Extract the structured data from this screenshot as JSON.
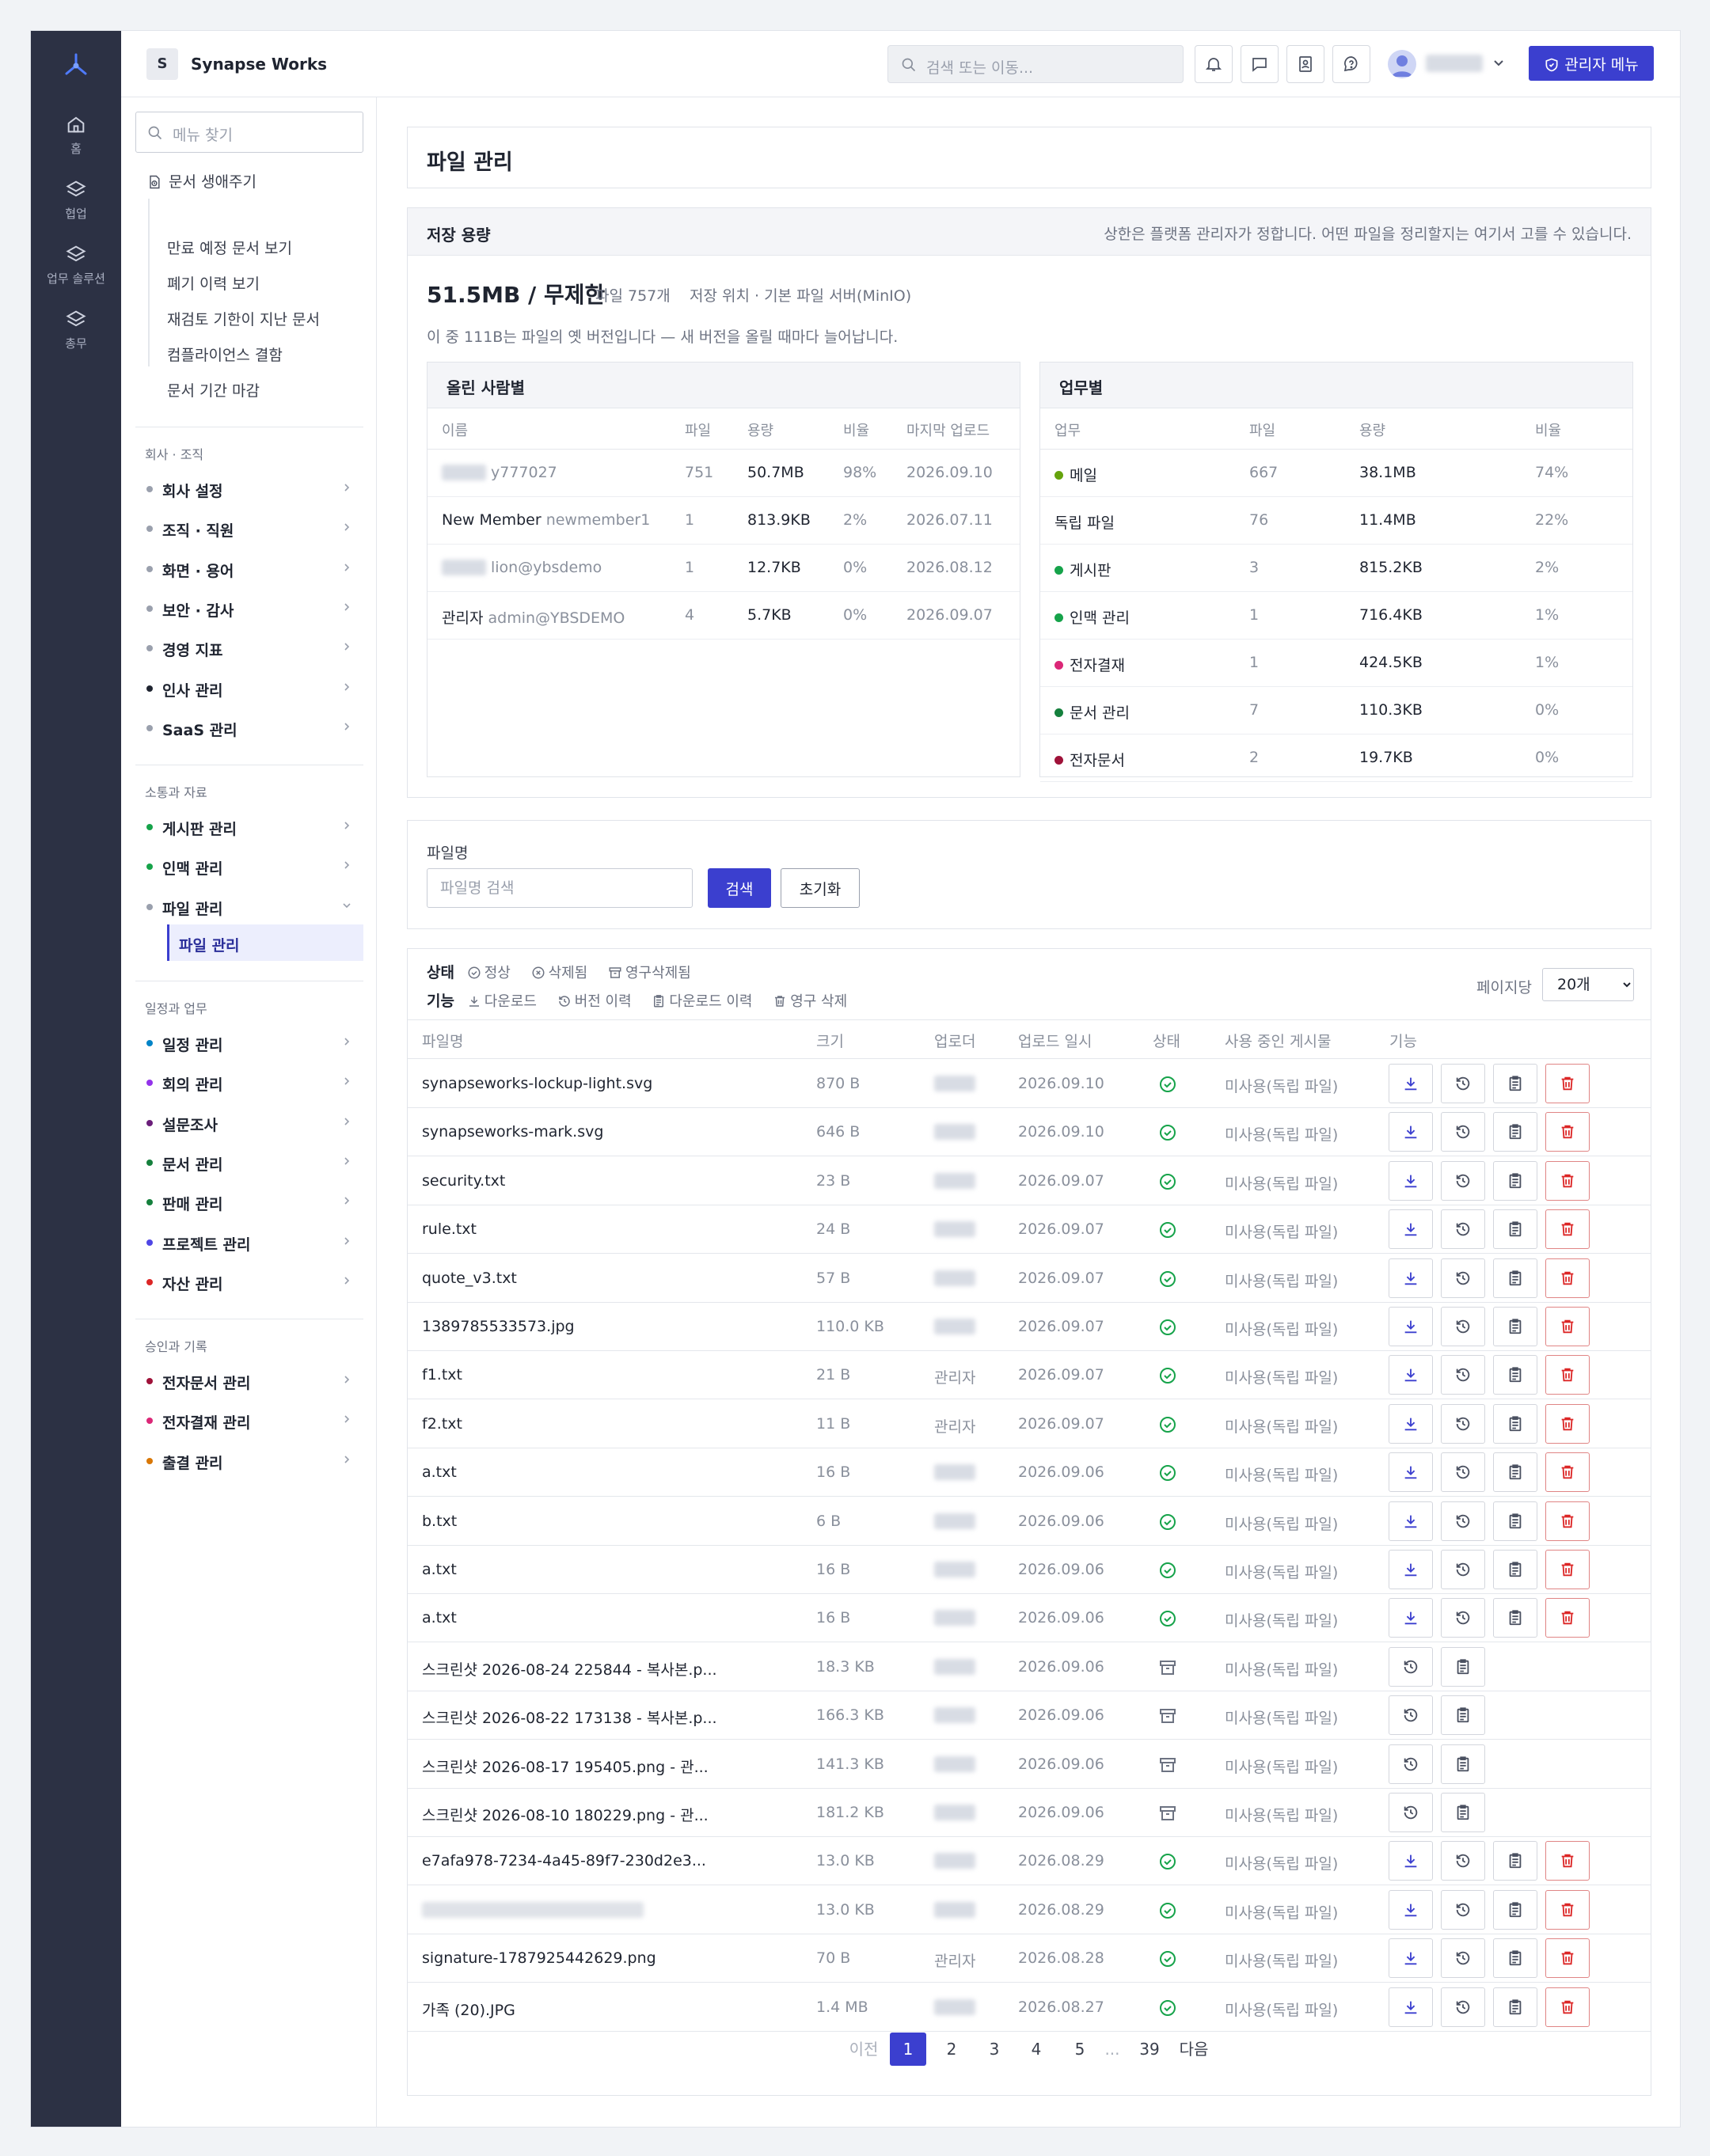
{
  "rail": {
    "items": [
      {
        "label": "홈",
        "icon": "home-icon"
      },
      {
        "label": "협업",
        "icon": "layers-icon"
      },
      {
        "label": "업무 솔루션",
        "icon": "layers-icon"
      },
      {
        "label": "총무",
        "icon": "layers-icon"
      }
    ]
  },
  "topbar": {
    "org_badge": "S",
    "org_name": "Synapse Works",
    "search_placeholder": "검색 또는 이동...",
    "admin_label": "관리자 메뉴"
  },
  "sidebar": {
    "search_placeholder": "메뉴 찾기",
    "doc_lifecycle": {
      "title": "문서 생애주기",
      "items": [
        "만료 예정 문서 보기",
        "폐기 이력 보기",
        "재검토 기한이 지난 문서",
        "컴플라이언스 결함",
        "문서 기간 마감"
      ]
    },
    "groups": [
      {
        "title": "회사 · 조직",
        "items": [
          {
            "label": "회사 설정",
            "color": "#9aa0ad"
          },
          {
            "label": "조직 · 직원",
            "color": "#9aa0ad"
          },
          {
            "label": "화면 · 용어",
            "color": "#9aa0ad"
          },
          {
            "label": "보안 · 감사",
            "color": "#9aa0ad"
          },
          {
            "label": "경영 지표",
            "color": "#9aa0ad"
          },
          {
            "label": "인사 관리",
            "color": "#1f2430"
          },
          {
            "label": "SaaS 관리",
            "color": "#9aa0ad"
          }
        ]
      },
      {
        "title": "소통과 자료",
        "items": [
          {
            "label": "게시판 관리",
            "color": "#16a34a"
          },
          {
            "label": "인맥 관리",
            "color": "#16a34a"
          },
          {
            "label": "파일 관리",
            "color": "#9aa0ad"
          }
        ]
      },
      {
        "title": "일정과 업무",
        "items": [
          {
            "label": "일정 관리",
            "color": "#0284c7"
          },
          {
            "label": "회의 관리",
            "color": "#9333ea"
          },
          {
            "label": "설문조사",
            "color": "#6b1f7a"
          },
          {
            "label": "문서 관리",
            "color": "#15803d"
          },
          {
            "label": "판매 관리",
            "color": "#15803d"
          },
          {
            "label": "프로젝트 관리",
            "color": "#4f46e5"
          },
          {
            "label": "자산 관리",
            "color": "#dc2626"
          }
        ]
      },
      {
        "title": "승인과 기록",
        "items": [
          {
            "label": "전자문서 관리",
            "color": "#9f1239"
          },
          {
            "label": "전자결재 관리",
            "color": "#db2777"
          },
          {
            "label": "출결 관리",
            "color": "#d97706"
          }
        ]
      }
    ],
    "active_sub": "파일 관리"
  },
  "page": {
    "title": "파일 관리"
  },
  "storage": {
    "heading": "저장 용량",
    "note": "상한은 플랫폼 관리자가 정합니다. 어떤 파일을 정리할지는 여기서 고를 수 있습니다.",
    "total": "51.5MB / 무제한",
    "file_count": "파일 757개",
    "location": "저장 위치 · 기본 파일 서버(MinIO)",
    "desc": "이 중 111B는 파일의 옛 버전입니다 — 새 버전을 올릴 때마다 늘어납니다.",
    "by_uploader": {
      "title": "올린 사람별",
      "headers": [
        "이름",
        "파일",
        "용량",
        "비율",
        "마지막 업로드"
      ],
      "rows": [
        {
          "name": "",
          "id": "y777027",
          "files": "751",
          "size": "50.7MB",
          "ratio": "98%",
          "last": "2026.09.10"
        },
        {
          "name": "New Member",
          "id": "newmember1",
          "files": "1",
          "size": "813.9KB",
          "ratio": "2%",
          "last": "2026.07.11"
        },
        {
          "name": "",
          "id": "lion@ybsdemo",
          "files": "1",
          "size": "12.7KB",
          "ratio": "0%",
          "last": "2026.08.12"
        },
        {
          "name": "관리자",
          "id": "admin@YBSDEMO",
          "files": "4",
          "size": "5.7KB",
          "ratio": "0%",
          "last": "2026.09.07"
        }
      ]
    },
    "by_module": {
      "title": "업무별",
      "headers": [
        "업무",
        "파일",
        "용량",
        "비율"
      ],
      "rows": [
        {
          "name": "메일",
          "color": "#65a30d",
          "files": "667",
          "size": "38.1MB",
          "ratio": "74%"
        },
        {
          "name": "독립 파일",
          "color": "",
          "files": "76",
          "size": "11.4MB",
          "ratio": "22%"
        },
        {
          "name": "게시판",
          "color": "#16a34a",
          "files": "3",
          "size": "815.2KB",
          "ratio": "2%"
        },
        {
          "name": "인맥 관리",
          "color": "#16a34a",
          "files": "1",
          "size": "716.4KB",
          "ratio": "1%"
        },
        {
          "name": "전자결재",
          "color": "#db2777",
          "files": "1",
          "size": "424.5KB",
          "ratio": "1%"
        },
        {
          "name": "문서 관리",
          "color": "#15803d",
          "files": "7",
          "size": "110.3KB",
          "ratio": "0%"
        },
        {
          "name": "전자문서",
          "color": "#9f1239",
          "files": "2",
          "size": "19.7KB",
          "ratio": "0%"
        }
      ]
    }
  },
  "filter": {
    "label": "파일명",
    "placeholder": "파일명 검색",
    "search": "검색",
    "reset": "초기화"
  },
  "legend": {
    "status_title": "상태",
    "statuses": [
      "정상",
      "삭제됨",
      "영구삭제됨"
    ],
    "actions_title": "기능",
    "actions": [
      "다운로드",
      "버전 이력",
      "다운로드 이력",
      "영구 삭제"
    ]
  },
  "per_page": {
    "label": "페이지당",
    "value": "20개"
  },
  "table": {
    "headers": [
      "파일명",
      "크기",
      "업로더",
      "업로드 일시",
      "상태",
      "사용 중인 게시물",
      "기능"
    ],
    "rows": [
      {
        "name": "synapseworks-lockup-light.svg",
        "size": "870 B",
        "uploader": "",
        "date": "2026.09.10",
        "status": "normal",
        "usage": "미사용(독립 파일)"
      },
      {
        "name": "synapseworks-mark.svg",
        "size": "646 B",
        "uploader": "",
        "date": "2026.09.10",
        "status": "normal",
        "usage": "미사용(독립 파일)"
      },
      {
        "name": "security.txt",
        "size": "23 B",
        "uploader": "",
        "date": "2026.09.07",
        "status": "normal",
        "usage": "미사용(독립 파일)"
      },
      {
        "name": "rule.txt",
        "size": "24 B",
        "uploader": "",
        "date": "2026.09.07",
        "status": "normal",
        "usage": "미사용(독립 파일)"
      },
      {
        "name": "quote_v3.txt",
        "size": "57 B",
        "uploader": "",
        "date": "2026.09.07",
        "status": "normal",
        "usage": "미사용(독립 파일)"
      },
      {
        "name": "1389785533573.jpg",
        "size": "110.0 KB",
        "uploader": "",
        "date": "2026.09.07",
        "status": "normal",
        "usage": "미사용(독립 파일)"
      },
      {
        "name": "f1.txt",
        "size": "21 B",
        "uploader": "관리자",
        "date": "2026.09.07",
        "status": "normal",
        "usage": "미사용(독립 파일)"
      },
      {
        "name": "f2.txt",
        "size": "11 B",
        "uploader": "관리자",
        "date": "2026.09.07",
        "status": "normal",
        "usage": "미사용(독립 파일)"
      },
      {
        "name": "a.txt",
        "size": "16 B",
        "uploader": "",
        "date": "2026.09.06",
        "status": "normal",
        "usage": "미사용(독립 파일)"
      },
      {
        "name": "b.txt",
        "size": "6 B",
        "uploader": "",
        "date": "2026.09.06",
        "status": "normal",
        "usage": "미사용(독립 파일)"
      },
      {
        "name": "a.txt",
        "size": "16 B",
        "uploader": "",
        "date": "2026.09.06",
        "status": "normal",
        "usage": "미사용(독립 파일)"
      },
      {
        "name": "a.txt",
        "size": "16 B",
        "uploader": "",
        "date": "2026.09.06",
        "status": "normal",
        "usage": "미사용(독립 파일)"
      },
      {
        "name": "스크린샷 2026-08-24 225844 - 복사본.p...",
        "size": "18.3 KB",
        "uploader": "",
        "date": "2026.09.06",
        "status": "purged",
        "usage": "미사용(독립 파일)"
      },
      {
        "name": "스크린샷 2026-08-22 173138 - 복사본.p...",
        "size": "166.3 KB",
        "uploader": "",
        "date": "2026.09.06",
        "status": "purged",
        "usage": "미사용(독립 파일)"
      },
      {
        "name": "스크린샷 2026-08-17 195405.png - 관...",
        "size": "141.3 KB",
        "uploader": "",
        "date": "2026.09.06",
        "status": "purged",
        "usage": "미사용(독립 파일)"
      },
      {
        "name": "스크린샷 2026-08-10 180229.png - 관...",
        "size": "181.2 KB",
        "uploader": "",
        "date": "2026.09.06",
        "status": "purged",
        "usage": "미사용(독립 파일)"
      },
      {
        "name": "e7afa978-7234-4a45-89f7-230d2e3...",
        "size": "13.0 KB",
        "uploader": "",
        "date": "2026.08.29",
        "status": "normal",
        "usage": "미사용(독립 파일)"
      },
      {
        "name": "",
        "size": "13.0 KB",
        "uploader": "",
        "date": "2026.08.29",
        "status": "normal",
        "usage": "미사용(독립 파일)"
      },
      {
        "name": "signature-1787925442629.png",
        "size": "70 B",
        "uploader": "관리자",
        "date": "2026.08.28",
        "status": "normal",
        "usage": "미사용(독립 파일)"
      },
      {
        "name": "가족 (20).JPG",
        "size": "1.4 MB",
        "uploader": "",
        "date": "2026.08.27",
        "status": "normal",
        "usage": "미사용(독립 파일)"
      }
    ]
  },
  "pagination": {
    "prev": "이전",
    "pages": [
      "1",
      "2",
      "3",
      "4",
      "5"
    ],
    "ellipsis": "...",
    "last": "39",
    "next": "다음",
    "current": "1"
  },
  "colors": {
    "accent": "#3b3fcf",
    "success": "#16a34a",
    "danger": "#dc2626",
    "rail": "#2c3144"
  }
}
